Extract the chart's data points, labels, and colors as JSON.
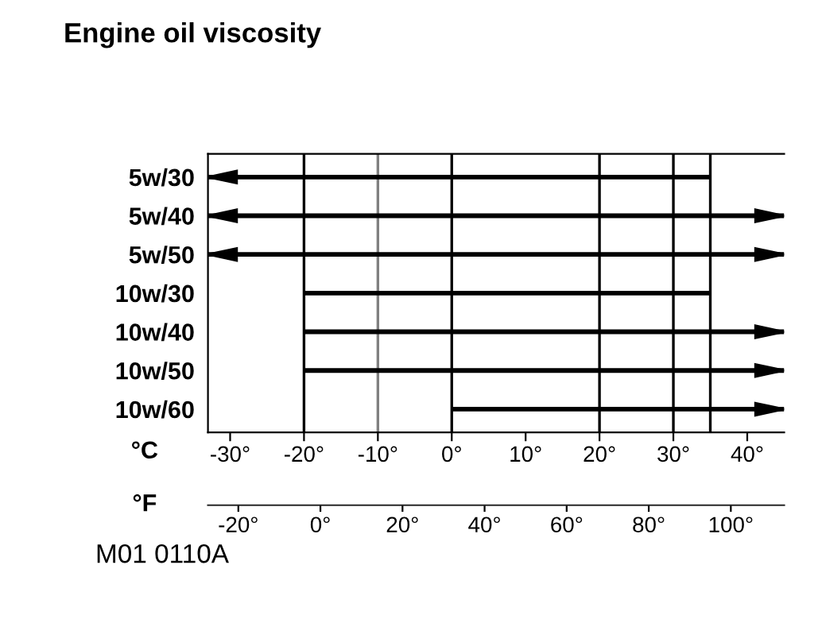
{
  "chart_data": {
    "type": "bar",
    "orientation": "horizontal",
    "title": "Engine oil viscosity",
    "categories": [
      "5w/30",
      "5w/40",
      "5w/50",
      "10w/30",
      "10w/40",
      "10w/50",
      "10w/60"
    ],
    "base": [
      -33,
      -33,
      -33,
      -20,
      -20,
      -20,
      0
    ],
    "values": [
      68,
      78,
      78,
      55,
      65,
      65,
      45
    ],
    "color": "#000000",
    "xlim": [
      -33,
      45
    ],
    "xticks": [
      {
        "value": -30,
        "label": "-30°"
      },
      {
        "value": -20,
        "label": "-20°"
      },
      {
        "value": -10,
        "label": "-10°"
      },
      {
        "value": 0,
        "label": "0°"
      },
      {
        "value": 10,
        "label": "10°"
      },
      {
        "value": 20,
        "label": "20°"
      },
      {
        "value": 30,
        "label": "30°"
      },
      {
        "value": 40,
        "label": "40°"
      }
    ],
    "xlabel": "°C",
    "x2lim": [
      -27.4,
      113
    ],
    "x2ticks": [
      {
        "value": -20,
        "label": "-20°"
      },
      {
        "value": 0,
        "label": "0°"
      },
      {
        "value": 20,
        "label": "20°"
      },
      {
        "value": 40,
        "label": "40°"
      },
      {
        "value": 60,
        "label": "60°"
      },
      {
        "value": 80,
        "label": "80°"
      },
      {
        "value": 100,
        "label": "100°"
      }
    ],
    "x2label": "°F",
    "ref_lines": [
      {
        "axis": "x",
        "value": -20,
        "color": "#000000"
      },
      {
        "axis": "x",
        "value": -10,
        "color": "#808080"
      },
      {
        "axis": "x",
        "value": 0,
        "color": "#000000"
      },
      {
        "axis": "x",
        "value": 20,
        "color": "#000000"
      },
      {
        "axis": "x",
        "value": 30,
        "color": "#000000"
      },
      {
        "axis": "x",
        "value": 35,
        "color": "#000000"
      }
    ],
    "grid": false,
    "annotations": [
      "M01 0110A"
    ]
  }
}
